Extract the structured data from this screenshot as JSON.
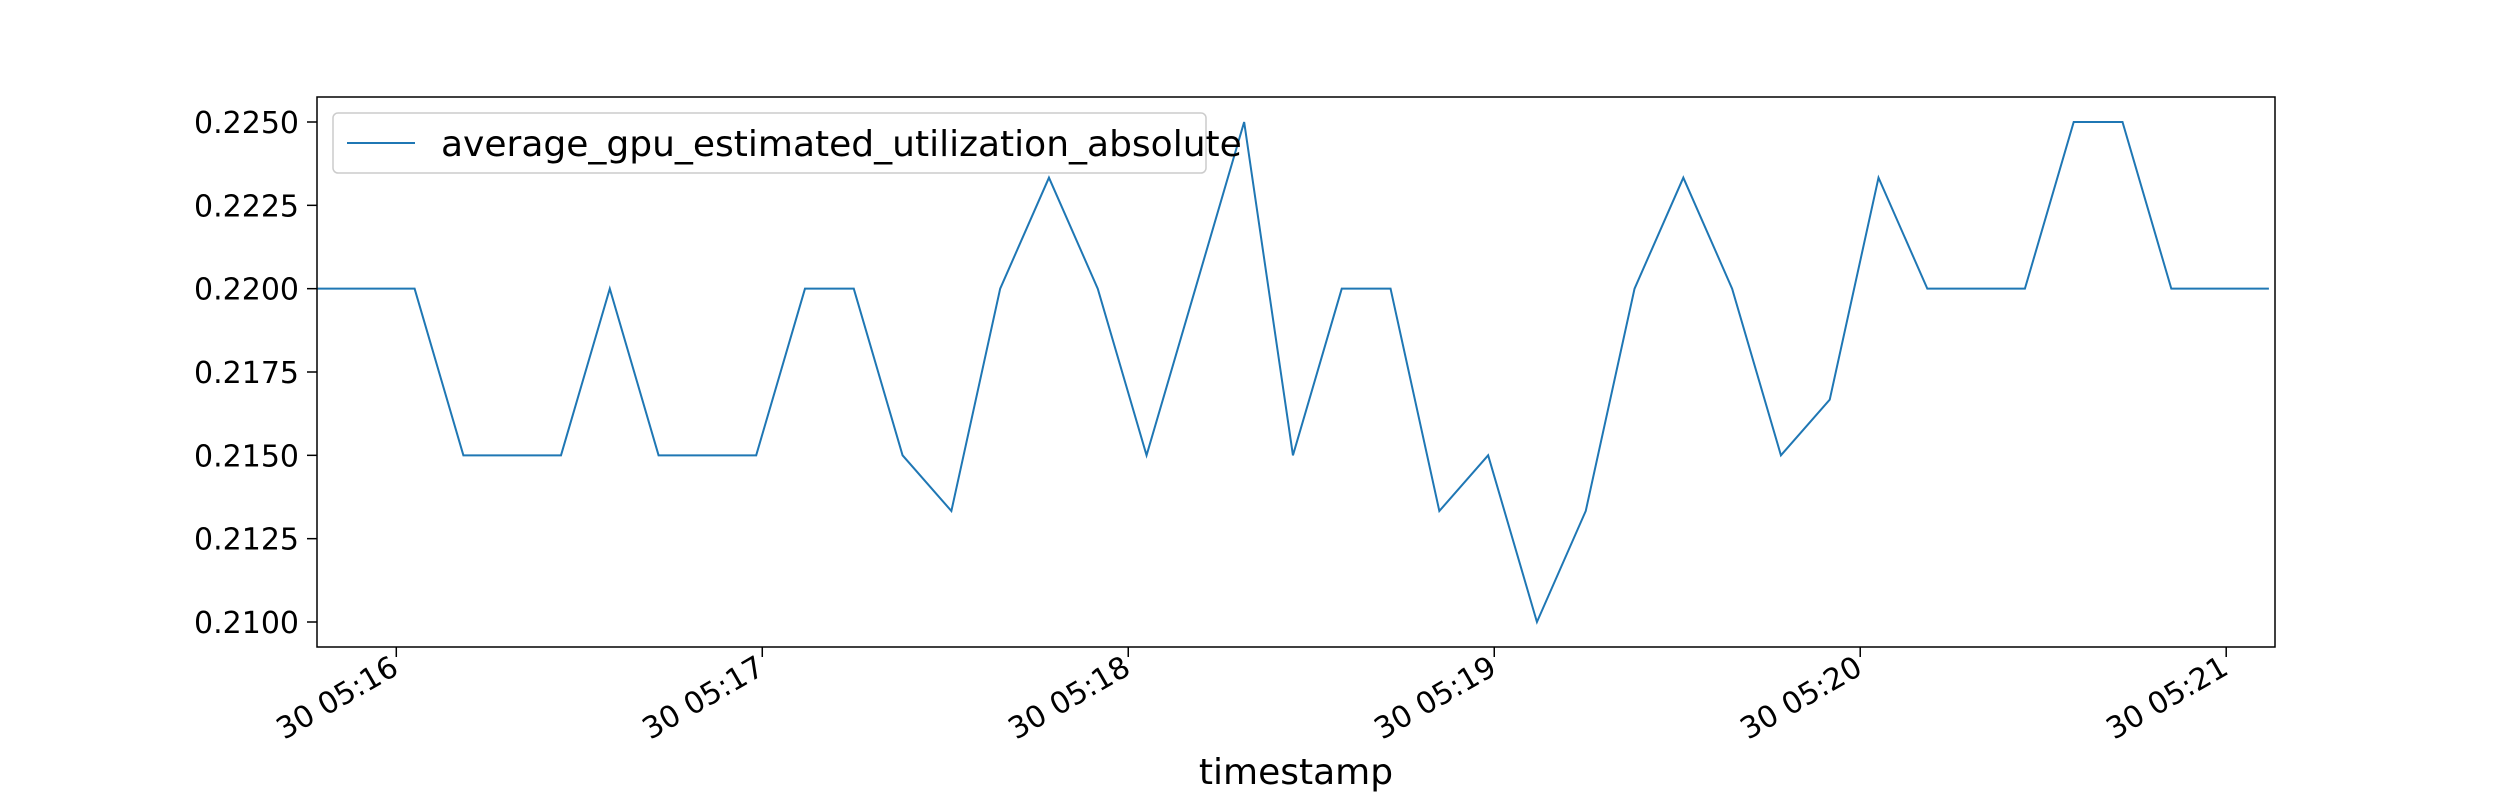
{
  "chart_data": {
    "type": "line",
    "title": "",
    "xlabel": "timestamp",
    "ylabel": "",
    "x_ticks": [
      "30 05:16",
      "30 05:17",
      "30 05:18",
      "30 05:19",
      "30 05:20",
      "30 05:21"
    ],
    "x_tick_seconds": [
      960,
      1020,
      1080,
      1140,
      1200,
      1260
    ],
    "xlim_seconds": [
      947,
      1268
    ],
    "y_ticks": [
      "0.2100",
      "0.2125",
      "0.2150",
      "0.2175",
      "0.2200",
      "0.2225",
      "0.2250"
    ],
    "ylim": [
      0.20925,
      0.22575
    ],
    "grid": false,
    "legend_position": "upper left",
    "series": [
      {
        "name": "average_gpu_estimated_utilization_absolute",
        "color": "#1f77b4",
        "x_seconds": [
          947,
          955,
          963,
          971,
          979,
          987,
          995,
          1003,
          1011,
          1019,
          1027,
          1035,
          1043,
          1051,
          1059,
          1067,
          1075,
          1083,
          1091,
          1099,
          1107,
          1115,
          1123,
          1131,
          1139,
          1147,
          1155,
          1163,
          1171,
          1179,
          1187,
          1195,
          1203,
          1211,
          1219,
          1227,
          1235,
          1243,
          1251,
          1259,
          1267
        ],
        "y": [
          0.22,
          0.22,
          0.22,
          0.215,
          0.215,
          0.215,
          0.22,
          0.215,
          0.215,
          0.215,
          0.22,
          0.22,
          0.215,
          0.21333,
          0.22,
          0.22333,
          0.22,
          0.215,
          0.22,
          0.225,
          0.215,
          0.22,
          0.22,
          0.21333,
          0.215,
          0.21,
          0.21333,
          0.22,
          0.22333,
          0.22,
          0.215,
          0.21667,
          0.22333,
          0.22,
          0.22,
          0.22,
          0.225,
          0.225,
          0.22,
          0.22,
          0.22
        ]
      }
    ]
  }
}
